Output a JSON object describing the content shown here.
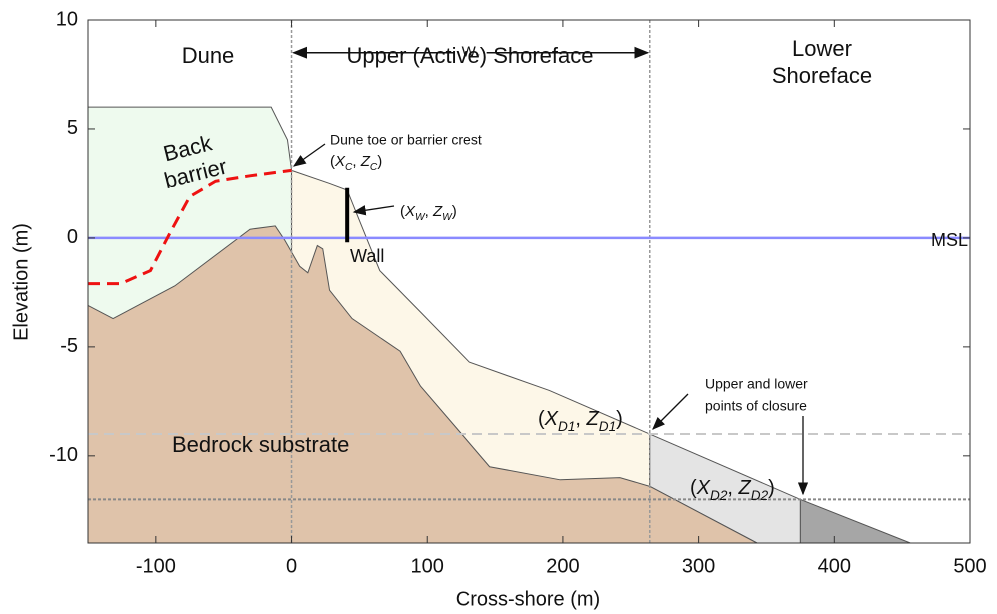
{
  "chart_data": {
    "type": "profile",
    "xlabel": "Cross-shore (m)",
    "ylabel": "Elevation (m)",
    "xlim": [
      -150,
      500
    ],
    "ylim": [
      -14,
      10
    ],
    "xticks": [
      -100,
      0,
      100,
      200,
      300,
      400,
      500
    ],
    "yticks": [
      -10,
      -5,
      0,
      5,
      10
    ],
    "layers": [
      {
        "color": "#eefaee",
        "x": [
          -150,
          -15,
          -3,
          0,
          0,
          -150
        ],
        "y": [
          6,
          6,
          4.5,
          3.1,
          -5,
          -5
        ]
      },
      {
        "color": "#fdf7e8",
        "x": [
          0,
          28,
          41,
          50,
          65,
          95,
          131,
          190,
          264,
          264,
          0
        ],
        "y": [
          3.1,
          2.5,
          2.2,
          0.8,
          -1.5,
          -3.4,
          -5.7,
          -7,
          -9,
          -11.4,
          -11.4
        ]
      },
      {
        "color": "#e4e4e4",
        "x": [
          264,
          375,
          375,
          343,
          264
        ],
        "y": [
          -9,
          -12,
          -14,
          -14,
          -11.4
        ]
      },
      {
        "color": "#a6a6a6",
        "x": [
          375,
          456,
          375
        ],
        "y": [
          -12,
          -14,
          -14
        ]
      },
      {
        "color": "#dfc3aa",
        "x": [
          -150,
          -131.5,
          -86,
          -30.6,
          -12,
          -5,
          6,
          12,
          19,
          23,
          28,
          44.6,
          80,
          95,
          124,
          146,
          198,
          242,
          264,
          343,
          -150
        ],
        "y": [
          -3.1,
          -3.7,
          -2.2,
          0.4,
          0.55,
          -0.1,
          -1.3,
          -1.6,
          -0.35,
          -0.5,
          -2.4,
          -3.7,
          -5.2,
          -6.8,
          -8.9,
          -10.5,
          -11.1,
          -11,
          -11.4,
          -14,
          -14
        ]
      }
    ],
    "back_barrier": {
      "color": "#ee1111",
      "x": [
        -150,
        -126,
        -104,
        -89,
        -75,
        -56,
        -30.6,
        0
      ],
      "y": [
        -2.1,
        -2.1,
        -1.5,
        0.3,
        1.9,
        2.6,
        2.85,
        3.1
      ]
    },
    "wall": {
      "x": 41,
      "y": [
        2.3,
        -0.2
      ],
      "label": "Wall"
    },
    "msl": {
      "y": 0,
      "color": "#8a8aff",
      "label": "MSL"
    },
    "dividers": [
      0,
      264
    ],
    "closure_depths": [
      -9,
      -12
    ],
    "zones": {
      "dune": "Dune",
      "upper": "Upper (Active) Shoreface",
      "lower": [
        "Lower",
        "Shoreface"
      ]
    },
    "width_label": [
      "W",
      "*"
    ],
    "back_barrier_label": [
      "Back",
      "barrier"
    ],
    "crest_note": "Dune toe or barrier crest",
    "crest_label": [
      "(",
      "X",
      "C",
      ", ",
      "Z",
      "C",
      ")"
    ],
    "wall_point_label": [
      "(",
      "X",
      "W",
      ", ",
      "Z",
      "W",
      ")"
    ],
    "d1_label": [
      "(",
      "X",
      "D1",
      ", ",
      "Z",
      "D1",
      ")"
    ],
    "d2_label": [
      "(",
      "X",
      "D2",
      ", ",
      "Z",
      "D2",
      ")"
    ],
    "closure_note": [
      "Upper and lower",
      "points of closure"
    ],
    "substrate_label": "Bedrock substrate"
  }
}
